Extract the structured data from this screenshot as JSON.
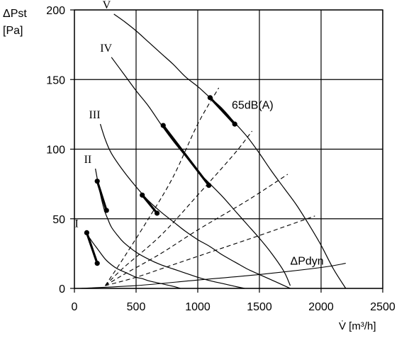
{
  "chart_data": {
    "type": "line",
    "title": "",
    "xlabel": "V̇ [m³/h]",
    "ylabel_line1": "ΔPst",
    "ylabel_line2": "[Pa]",
    "xlim": [
      0,
      2500
    ],
    "ylim": [
      0,
      200
    ],
    "x_ticks": [
      0,
      500,
      1000,
      1500,
      2000,
      2500
    ],
    "y_ticks": [
      0,
      50,
      100,
      150,
      200
    ],
    "grid": true,
    "series": [
      {
        "name": "I",
        "x": [
          95,
          140,
          190,
          250,
          300,
          350,
          400,
          450,
          500,
          550,
          600,
          650,
          700,
          750,
          800,
          860
        ],
        "y": [
          40,
          34,
          28,
          21,
          17,
          14,
          12,
          10,
          8,
          7,
          5.5,
          4.5,
          3.5,
          2.5,
          1.5,
          0
        ],
        "highlight": {
          "x": [
            100,
            185
          ],
          "y": [
            40,
            18
          ]
        }
      },
      {
        "name": "II",
        "x": [
          170,
          200,
          240,
          270,
          300,
          350,
          400,
          500,
          600,
          700,
          800,
          900,
          1000,
          1100,
          1200,
          1300,
          1380
        ],
        "y": [
          86,
          72,
          57,
          50,
          44,
          38,
          33,
          26,
          21,
          17,
          14,
          11,
          8,
          5.5,
          3.5,
          1.5,
          0
        ],
        "highlight": {
          "x": [
            185,
            260
          ],
          "y": [
            77,
            56
          ]
        }
      },
      {
        "name": "III",
        "x": [
          210,
          250,
          300,
          400,
          500,
          600,
          700,
          800,
          900,
          1000,
          1100,
          1200,
          1300,
          1400,
          1500,
          1600,
          1700,
          1750
        ],
        "y": [
          118,
          107,
          97,
          84,
          73,
          63,
          55,
          48,
          41,
          35,
          30,
          24,
          19,
          14,
          10,
          6,
          2,
          0
        ],
        "highlight": {
          "x": [
            550,
            670
          ],
          "y": [
            67,
            54
          ]
        }
      },
      {
        "name": "IV",
        "x": [
          300,
          400,
          500,
          600,
          700,
          800,
          900,
          1000,
          1100,
          1200,
          1300,
          1400,
          1500,
          1600,
          1700,
          1750
        ],
        "y": [
          166,
          154,
          142,
          131,
          118,
          106,
          95,
          84,
          75,
          66,
          56,
          46,
          36,
          25,
          12,
          2
        ],
        "highlight": {
          "x": [
            720,
            1090
          ],
          "y": [
            117,
            74
          ]
        }
      },
      {
        "name": "V",
        "x": [
          320,
          400,
          500,
          600,
          700,
          800,
          900,
          1000,
          1100,
          1200,
          1300,
          1400,
          1500,
          1600,
          1700,
          1800,
          1900,
          2000,
          2100,
          2200
        ],
        "y": [
          197,
          192,
          185,
          177,
          169,
          161,
          152,
          145,
          137,
          129,
          119,
          109,
          97,
          84,
          72,
          60,
          46,
          31,
          14,
          0
        ],
        "highlight": {
          "x": [
            1100,
            1300
          ],
          "y": [
            137,
            118
          ]
        }
      }
    ],
    "dynamic_pressure_lines": [
      {
        "x": [
          250,
          400,
          600,
          800,
          1000,
          1170
        ],
        "y": [
          2,
          22,
          50,
          80,
          118,
          144
        ]
      },
      {
        "x": [
          250,
          400,
          700,
          1000,
          1300,
          1440
        ],
        "y": [
          2,
          15,
          38,
          67,
          97,
          113
        ]
      },
      {
        "x": [
          250,
          400,
          700,
          1000,
          1400,
          1730
        ],
        "y": [
          2,
          10,
          25,
          42,
          63,
          82
        ]
      },
      {
        "x": [
          250,
          500,
          800,
          1100,
          1500,
          1950
        ],
        "y": [
          2,
          8,
          17,
          26,
          38,
          52
        ]
      },
      {
        "x": [
          40,
          500,
          1000,
          1500,
          2000,
          2200
        ],
        "y": [
          0,
          2,
          6,
          10,
          15,
          18
        ]
      }
    ],
    "annotations": [
      {
        "text": "65dB(A)",
        "x": 1230,
        "y": 132
      },
      {
        "text": "ΔPdyn",
        "x": 1750,
        "y": 12
      }
    ]
  }
}
